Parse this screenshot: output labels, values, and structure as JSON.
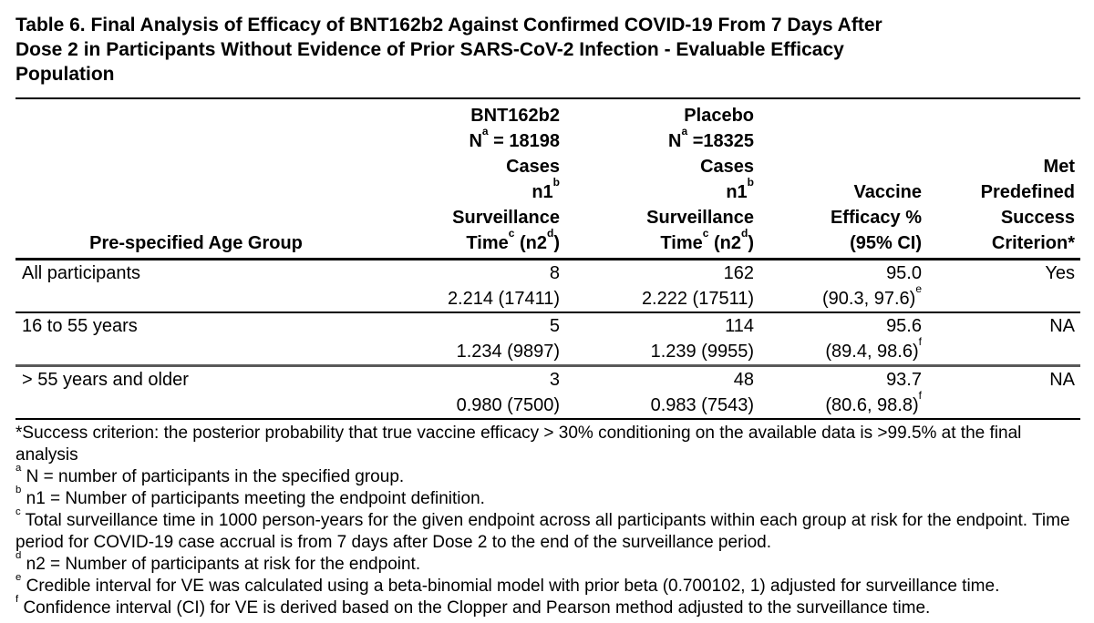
{
  "title_lines": [
    "Table 6. Final Analysis of Efficacy of BNT162b2 Against Confirmed COVID-19 From 7 Days After",
    "Dose 2 in Participants Without Evidence of Prior SARS-CoV-2 Infection - Evaluable Efficacy",
    "Population"
  ],
  "table": {
    "header": {
      "age_group": "Pre-specified Age Group",
      "bnt162b2": [
        "BNT162b2",
        "N^a^ = 18198",
        "Cases",
        "n1^b^",
        "Surveillance",
        "Time^c^ (n2^d^)"
      ],
      "placebo": [
        "Placebo",
        "N^a^ =18325",
        "Cases",
        "n1^b^",
        "Surveillance",
        "Time^c^ (n2^d^)"
      ],
      "vaccine_efficacy": [
        "Vaccine",
        "Efficacy %",
        "(95% CI)"
      ],
      "met_criterion": [
        "Met",
        "Predefined",
        "Success",
        "Criterion*"
      ]
    },
    "rows": [
      {
        "age_group": "All participants",
        "bnt_cases": "8",
        "bnt_surveillance": "2.214 (17411)",
        "placebo_cases": "162",
        "placebo_surveillance": "2.222 (17511)",
        "vaccine_efficacy": "95.0",
        "ci": "(90.3, 97.6)^e^",
        "met_criterion": "Yes"
      },
      {
        "age_group": "16 to 55 years",
        "bnt_cases": "5",
        "bnt_surveillance": "1.234 (9897)",
        "placebo_cases": "114",
        "placebo_surveillance": "1.239 (9955)",
        "vaccine_efficacy": "95.6",
        "ci": "(89.4, 98.6)^f^",
        "met_criterion": "NA"
      },
      {
        "age_group": "> 55 years and older",
        "bnt_cases": "3",
        "bnt_surveillance": "0.980 (7500)",
        "placebo_cases": "48",
        "placebo_surveillance": "0.983 (7543)",
        "vaccine_efficacy": "93.7",
        "ci": "(80.6, 98.8)^f^",
        "met_criterion": "NA"
      }
    ]
  },
  "footnotes": [
    "*Success criterion: the posterior probability that true vaccine efficacy > 30% conditioning on the available data is >99.5% at the final analysis",
    "^a^ N = number of participants in the specified group.",
    "^b^ n1 = Number of participants meeting the endpoint definition.",
    "^c^ Total surveillance time in 1000 person-years for the given endpoint across all participants within each group at risk for the endpoint. Time period for COVID-19 case accrual is from 7 days after Dose 2 to the end of the surveillance period.",
    "^d^ n2 = Number of participants at risk for the endpoint.",
    "^e^ Credible interval for VE was calculated using a beta-binomial model with prior beta (0.700102, 1) adjusted for surveillance time.",
    "^f^ Confidence interval (CI) for VE is derived based on the Clopper and Pearson method adjusted to the surveillance time."
  ]
}
